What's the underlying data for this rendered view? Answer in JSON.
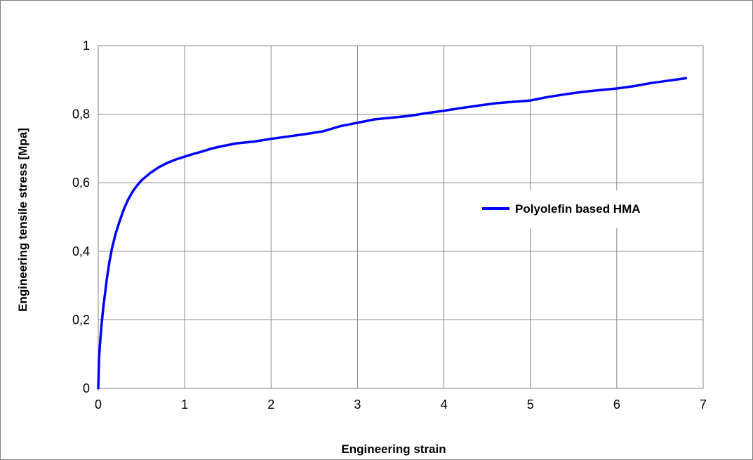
{
  "chart_data": {
    "type": "line",
    "title": "",
    "xlabel": "Engineering strain",
    "ylabel": "Engineering tensile stress [Mpa]",
    "xlim": [
      0,
      7
    ],
    "ylim": [
      0,
      1
    ],
    "x_ticks": [
      0,
      1,
      2,
      3,
      4,
      5,
      6,
      7
    ],
    "y_ticks": [
      0,
      0.2,
      0.4,
      0.6,
      0.8,
      1
    ],
    "x_tick_labels": [
      "0",
      "1",
      "2",
      "3",
      "4",
      "5",
      "6",
      "7"
    ],
    "y_tick_labels": [
      "0",
      "0,2",
      "0,4",
      "0,6",
      "0,8",
      "1"
    ],
    "grid": true,
    "legend": "right",
    "series": [
      {
        "name": "Polyolefin based HMA",
        "color": "#0000ff",
        "x": [
          0,
          0.01,
          0.02,
          0.04,
          0.06,
          0.08,
          0.1,
          0.13,
          0.16,
          0.2,
          0.25,
          0.3,
          0.35,
          0.4,
          0.45,
          0.5,
          0.6,
          0.7,
          0.8,
          0.9,
          1.0,
          1.1,
          1.2,
          1.3,
          1.4,
          1.5,
          1.6,
          1.8,
          2.0,
          2.2,
          2.4,
          2.6,
          2.8,
          3.0,
          3.2,
          3.4,
          3.6,
          3.8,
          4.0,
          4.2,
          4.4,
          4.6,
          4.8,
          5.0,
          5.2,
          5.4,
          5.6,
          5.8,
          6.0,
          6.2,
          6.4,
          6.6,
          6.8
        ],
        "y": [
          0,
          0.09,
          0.13,
          0.19,
          0.24,
          0.28,
          0.32,
          0.37,
          0.41,
          0.45,
          0.49,
          0.525,
          0.553,
          0.575,
          0.592,
          0.607,
          0.628,
          0.645,
          0.658,
          0.668,
          0.676,
          0.684,
          0.691,
          0.699,
          0.705,
          0.71,
          0.715,
          0.72,
          0.728,
          0.735,
          0.742,
          0.75,
          0.765,
          0.775,
          0.785,
          0.79,
          0.795,
          0.803,
          0.81,
          0.818,
          0.825,
          0.832,
          0.836,
          0.84,
          0.85,
          0.858,
          0.865,
          0.87,
          0.875,
          0.882,
          0.891,
          0.898,
          0.905
        ]
      }
    ]
  }
}
